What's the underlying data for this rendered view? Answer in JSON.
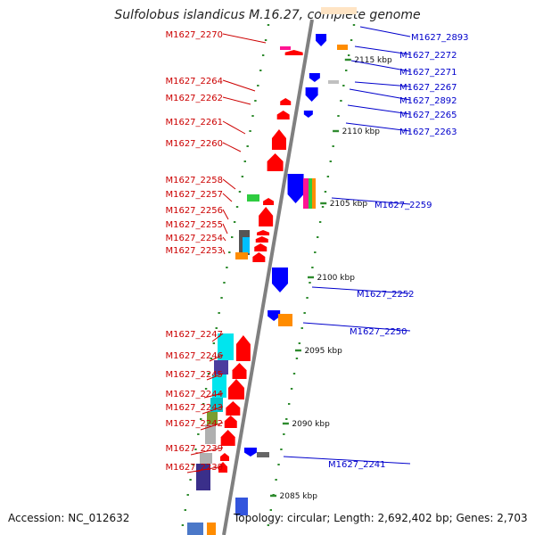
{
  "title": "Sulfolobus islandicus M.16.27, complete genome",
  "accession_line": "Accession: NC_012632",
  "summary_line": "Topology: circular; Length: 2,692,402 bp; Genes: 2,703",
  "scale_labels": [
    "2115 kbp",
    "2110 kbp",
    "2105 kbp",
    "2100 kbp",
    "2095 kbp",
    "2090 kbp",
    "2085 kbp"
  ],
  "colors": {
    "forward": "#ff0000",
    "reverse": "#0000ff",
    "backbone": "#808080",
    "tick": "#2e8b2e",
    "forward_label": "#cc0000",
    "reverse_label": "#0000cc"
  },
  "forward_genes": [
    "M1627_2270",
    "M1627_2264",
    "M1627_2262",
    "M1627_2261",
    "M1627_2260",
    "M1627_2258",
    "M1627_2257",
    "M1627_2256",
    "M1627_2255",
    "M1627_2254",
    "M1627_2253",
    "M1627_2247",
    "M1627_2246",
    "M1627_2245",
    "M1627_2244",
    "M1627_2243",
    "M1627_2242",
    "M1627_2239",
    "M1627_2238"
  ],
  "reverse_genes": [
    "M1627_2893",
    "M1627_2272",
    "M1627_2271",
    "M1627_2267",
    "M1627_2892",
    "M1627_2265",
    "M1627_2263",
    "M1627_2259",
    "M1627_2252",
    "M1627_2250",
    "M1627_2241"
  ]
}
